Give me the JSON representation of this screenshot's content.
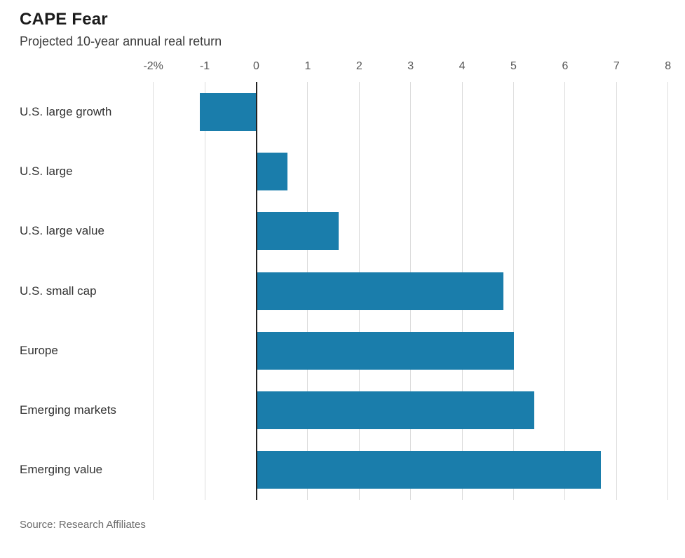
{
  "header": {
    "title": "CAPE Fear",
    "subtitle": "Projected 10-year annual real return"
  },
  "source": "Source: Research Affiliates",
  "chart_data": {
    "type": "bar",
    "orientation": "horizontal",
    "title": "CAPE Fear",
    "subtitle": "Projected 10-year annual real return",
    "categories": [
      "U.S. large growth",
      "U.S. large",
      "U.S. large value",
      "U.S. small cap",
      "Europe",
      "Emerging markets",
      "Emerging value"
    ],
    "values": [
      -1.1,
      0.6,
      1.6,
      4.8,
      5.0,
      5.4,
      6.7
    ],
    "unit": "percent",
    "x_ticks": [
      "-2%",
      "-1",
      "0",
      "1",
      "2",
      "3",
      "4",
      "5",
      "6",
      "7",
      "8"
    ],
    "x_tick_values": [
      -2,
      -1,
      0,
      1,
      2,
      3,
      4,
      5,
      6,
      7,
      8
    ],
    "xlim": [
      -2.2,
      8.3
    ],
    "grid": true,
    "legend": "none",
    "colors": {
      "bar": "#1a7dab",
      "zero_line": "#222222",
      "gridline": "#dddddd",
      "tick_text": "#555555",
      "category_text": "#333333"
    }
  }
}
